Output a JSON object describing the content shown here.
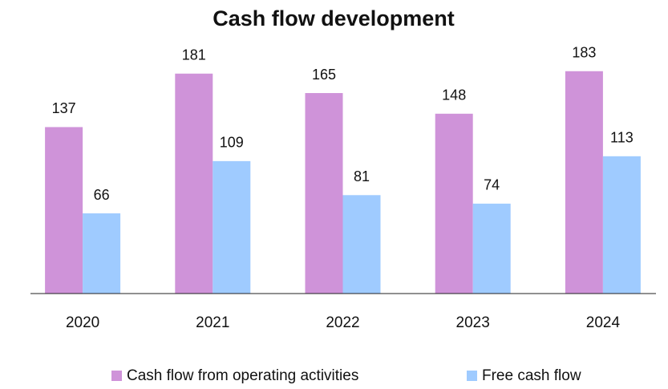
{
  "chart_data": {
    "type": "bar",
    "title": "Cash flow development",
    "categories": [
      "2020",
      "2021",
      "2022",
      "2023",
      "2024"
    ],
    "series": [
      {
        "name": "Cash flow from operating activities",
        "color": "#cf93d9",
        "values": [
          137,
          181,
          165,
          148,
          183
        ]
      },
      {
        "name": "Free cash flow",
        "color": "#9fcbff",
        "values": [
          66,
          109,
          81,
          74,
          113
        ]
      }
    ],
    "ylim": [
      0,
      200
    ],
    "legend": "bottom"
  }
}
